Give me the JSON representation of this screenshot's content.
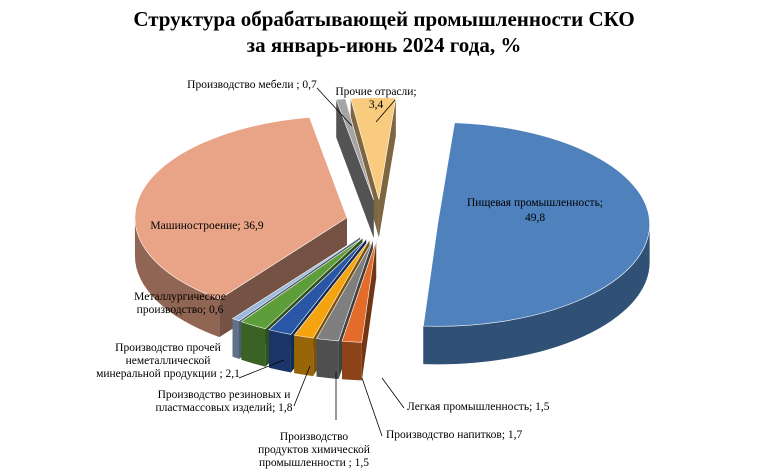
{
  "chart_data": {
    "type": "pie",
    "title_line1": "Структура обрабатывающей промышленности СКО",
    "title_line2": "за январь-июнь 2024 года, %",
    "slices": [
      {
        "id": "food",
        "label_lines": [
          "Пищевая промышленность;",
          "49,8"
        ],
        "value": 49.8,
        "color": "#4F81BD"
      },
      {
        "id": "light",
        "label_lines": [
          "Легкая промышленность; 1,5"
        ],
        "value": 1.5,
        "color": "#E36C2A"
      },
      {
        "id": "drinks",
        "label_lines": [
          "Производство напитков; 1,7"
        ],
        "value": 1.7,
        "color": "#7F7F7F"
      },
      {
        "id": "chem",
        "label_lines": [
          "Производство",
          "продуктов химической",
          "промышленности ; 1,5"
        ],
        "value": 1.5,
        "color": "#F5A40F"
      },
      {
        "id": "rubber",
        "label_lines": [
          "Производство резиновых и",
          "пластмассовых изделий; 1,8"
        ],
        "value": 1.8,
        "color": "#2A56A8"
      },
      {
        "id": "mineral",
        "label_lines": [
          "Производство прочей",
          "неметаллической",
          "минеральной продукции ; 2,1"
        ],
        "value": 2.1,
        "color": "#5E9E3A"
      },
      {
        "id": "metal",
        "label_lines": [
          "Металлургическое",
          "производство; 0,6"
        ],
        "value": 0.6,
        "color": "#9BB8DD"
      },
      {
        "id": "machine",
        "label_lines": [
          "Машиностроение; 36,9"
        ],
        "value": 36.9,
        "color": "#E9A386"
      },
      {
        "id": "furniture",
        "label_lines": [
          "Производство мебели ; 0,7"
        ],
        "value": 0.7,
        "color": "#A5A5A5"
      },
      {
        "id": "other",
        "label_lines": [
          "Прочие отрасли;",
          "3,4"
        ],
        "value": 3.4,
        "color": "#F9CB7F"
      }
    ]
  }
}
